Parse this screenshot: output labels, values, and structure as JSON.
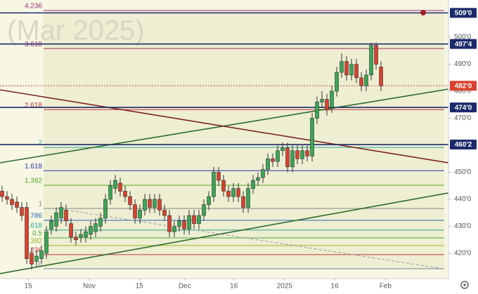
{
  "chart_data": {
    "type": "candlestick",
    "watermark": "(Mar 2025)",
    "categories": [
      null,
      null,
      null,
      null,
      null,
      null,
      null,
      null,
      null,
      null,
      null,
      null,
      null,
      null,
      null,
      null,
      null,
      null,
      null,
      null,
      null,
      null,
      null,
      null,
      null,
      null,
      null,
      null,
      null,
      null,
      null,
      null,
      null,
      null,
      null,
      null,
      null,
      null,
      null,
      null,
      null,
      null,
      null,
      null,
      null,
      null,
      null,
      null,
      null,
      null,
      null,
      null,
      null,
      null,
      null,
      null,
      null,
      null,
      null,
      null,
      null,
      null,
      null,
      null,
      null,
      null,
      null,
      null,
      null,
      null,
      null,
      null,
      null,
      null,
      null,
      null,
      null,
      null
    ],
    "open": [
      443,
      441,
      440,
      439,
      437,
      437,
      420,
      417,
      418,
      420,
      429,
      430,
      433,
      436,
      431,
      426,
      426,
      426,
      427,
      428,
      430,
      433,
      440,
      444,
      446,
      443,
      441,
      438,
      433,
      436,
      440,
      437,
      440,
      436,
      434,
      428,
      430,
      432,
      429,
      434,
      431,
      434,
      438,
      441,
      450,
      447,
      443,
      441,
      444,
      441,
      437,
      444,
      447,
      448,
      451,
      455,
      454,
      458,
      459,
      452,
      458,
      455,
      458,
      456,
      470,
      476,
      477,
      474,
      480,
      487,
      491,
      486,
      490,
      485,
      482,
      486,
      497,
      489
    ],
    "high": [
      445,
      443,
      442,
      441,
      439,
      439,
      422,
      421,
      423,
      430,
      434,
      437,
      439,
      438,
      433,
      428,
      429,
      430,
      432,
      433,
      435,
      442,
      447,
      449,
      448,
      445,
      443,
      440,
      438,
      442,
      442,
      442,
      442,
      438,
      436,
      432,
      434,
      434,
      436,
      436,
      436,
      440,
      443,
      452,
      452,
      449,
      445,
      446,
      446,
      443,
      446,
      449,
      450,
      453,
      457,
      457,
      460,
      461,
      461,
      460,
      460,
      460,
      460,
      472,
      478,
      480,
      479,
      482,
      489,
      494,
      493,
      492,
      492,
      487,
      488,
      498,
      498,
      491
    ],
    "low": [
      439,
      438,
      436,
      435,
      432,
      416,
      414,
      415,
      416,
      418,
      427,
      428,
      431,
      430,
      424,
      423,
      424,
      424,
      425,
      426,
      428,
      431,
      438,
      442,
      441,
      439,
      436,
      431,
      431,
      434,
      435,
      435,
      434,
      432,
      426,
      426,
      428,
      427,
      427,
      429,
      429,
      432,
      436,
      439,
      445,
      441,
      439,
      439,
      439,
      435,
      435,
      442,
      445,
      446,
      449,
      452,
      452,
      456,
      450,
      450,
      453,
      453,
      454,
      454,
      468,
      474,
      471,
      472,
      478,
      485,
      484,
      484,
      483,
      480,
      480,
      484,
      488,
      480
    ],
    "close": [
      441,
      440,
      438,
      437,
      434,
      418,
      416,
      419,
      421,
      428,
      432,
      435,
      437,
      432,
      426,
      425,
      427,
      428,
      430,
      431,
      433,
      440,
      445,
      447,
      443,
      441,
      438,
      433,
      436,
      440,
      437,
      440,
      436,
      434,
      428,
      430,
      432,
      429,
      434,
      431,
      434,
      438,
      441,
      450,
      447,
      443,
      441,
      444,
      441,
      437,
      444,
      447,
      448,
      451,
      455,
      454,
      458,
      459,
      452,
      458,
      455,
      458,
      456,
      470,
      476,
      477,
      473,
      480,
      487,
      491,
      486,
      490,
      485,
      482,
      486,
      497,
      490,
      482
    ],
    "up_color": "#3aa655",
    "down_color": "#d9412e",
    "xlim": [
      -0.43,
      90.71
    ],
    "xticks": [
      {
        "value": 5.3,
        "label": "15"
      },
      {
        "value": 17.7,
        "label": "Nov"
      },
      {
        "value": 27.9,
        "label": "15"
      },
      {
        "value": 37.1,
        "label": "Dec"
      },
      {
        "value": 47.1,
        "label": "16"
      },
      {
        "value": 57.4,
        "label": "2025"
      },
      {
        "value": 67.6,
        "label": "16"
      },
      {
        "value": 77.9,
        "label": "Feb"
      }
    ],
    "ylim": [
      410.65,
      513.77
    ],
    "yticks": [
      {
        "value": 420,
        "label": "420'0"
      },
      {
        "value": 430,
        "label": "430'0"
      },
      {
        "value": 440,
        "label": "440'0"
      },
      {
        "value": 450,
        "label": "450'0"
      },
      {
        "value": 470,
        "label": "470'0"
      },
      {
        "value": 480,
        "label": "480'0"
      },
      {
        "value": 490,
        "label": "490'0"
      },
      {
        "value": 500,
        "label": "500'0"
      }
    ],
    "levels": [
      {
        "value": 509,
        "label": "509'0",
        "color": "#1c2a6b"
      },
      {
        "value": 497.5,
        "label": "497'4",
        "color": "#1c2a6b"
      },
      {
        "value": 482,
        "label": "482'0",
        "color": "#d9412e"
      },
      {
        "value": 474,
        "label": "474'0",
        "color": "#1c2a6b"
      },
      {
        "value": 460.25,
        "label": "460'2",
        "color": "#1c2a6b"
      }
    ],
    "fib": [
      {
        "value": 509.9,
        "label": "4.236",
        "color": "#a0307a"
      },
      {
        "value": 495.8,
        "label": "3.618",
        "color": "#9a3060"
      },
      {
        "value": 473.2,
        "label": "2.618",
        "color": "#c0303a"
      },
      {
        "value": 459.2,
        "label": "2",
        "color": "#2aa6a0"
      },
      {
        "value": 450.6,
        "label": "1.618",
        "color": "#2a36a6"
      },
      {
        "value": 445.2,
        "label": "1.382",
        "color": "#5aa82a"
      },
      {
        "value": 436.6,
        "label": "1",
        "color": "#888888"
      },
      {
        "value": 432.2,
        "label": "0.786",
        "color": "#2a66b6"
      },
      {
        "value": 428.6,
        "label": "0.618",
        "color": "#2aa68a"
      },
      {
        "value": 425.7,
        "label": "0.5",
        "color": "#4aaa3a"
      },
      {
        "value": 422.9,
        "label": "0.382",
        "color": "#9ab82a"
      },
      {
        "value": 419.5,
        "label": "0.236",
        "color": "#c03a3a"
      },
      {
        "value": 414.3,
        "label": "0",
        "color": "#7080a0"
      }
    ]
  }
}
